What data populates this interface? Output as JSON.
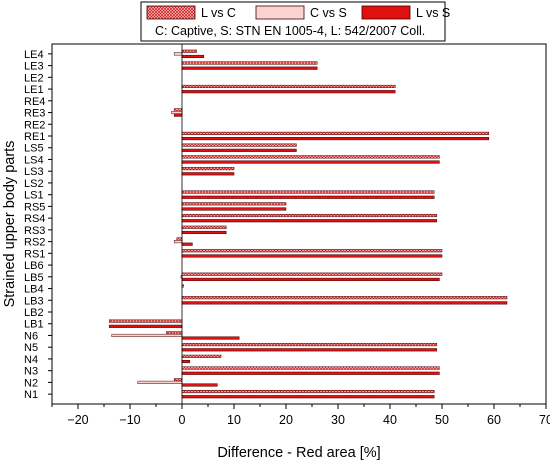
{
  "chart_data": {
    "type": "bar",
    "orientation": "horizontal",
    "xlabel": "Difference - Red area [%]",
    "ylabel": "Strained upper body parts",
    "xlim": [
      -25,
      70
    ],
    "xticks": [
      "−20",
      "−10",
      "0",
      "10",
      "20",
      "30",
      "40",
      "50",
      "60",
      "70"
    ],
    "categories": [
      "N1",
      "N2",
      "N3",
      "N4",
      "N5",
      "N6",
      "LB1",
      "LB2",
      "LB3",
      "LB4",
      "LB5",
      "LB6",
      "RS1",
      "RS2",
      "RS3",
      "RS4",
      "RS5",
      "LS1",
      "LS2",
      "LS3",
      "LS4",
      "LS5",
      "RE1",
      "RE2",
      "RE3",
      "RE4",
      "LE1",
      "LE2",
      "LE3",
      "LE4"
    ],
    "series": [
      {
        "name": "L vs C",
        "values": [
          48.5,
          -1.5,
          49.5,
          7.5,
          49.0,
          -3.0,
          -14.0,
          0,
          62.5,
          0.3,
          50.0,
          0,
          50.0,
          -1.0,
          8.5,
          49.0,
          20.0,
          48.5,
          0,
          10.0,
          49.5,
          22.0,
          59.0,
          0,
          -1.5,
          0,
          41.0,
          0,
          26.0,
          2.8
        ]
      },
      {
        "name": "C vs S",
        "values": [
          0,
          -8.5,
          0,
          0,
          0,
          -13.5,
          0,
          0,
          0,
          0,
          -0.2,
          0,
          0,
          -1.5,
          0,
          0,
          0,
          0,
          0,
          0,
          0,
          0,
          0,
          0,
          -2.0,
          0,
          0,
          0,
          0,
          -1.5
        ]
      },
      {
        "name": "L vs S",
        "values": [
          48.5,
          6.8,
          49.5,
          1.5,
          49.0,
          11.0,
          -14.0,
          0,
          62.5,
          0,
          49.5,
          0,
          50.0,
          2.0,
          8.5,
          49.0,
          20.0,
          48.5,
          0,
          10.0,
          49.5,
          22.0,
          59.0,
          0,
          -1.5,
          0,
          41.0,
          0,
          26.0,
          4.2
        ]
      }
    ],
    "legend_position": "top-center",
    "legend_note": "C: Captive, S: STN EN 1005-4, L: 542/2007 Coll.",
    "colors": {
      "L vs C": "#f4a6a6",
      "C vs S": "#fbd3d3",
      "L vs S": "#e01010",
      "edge": "#400000"
    }
  }
}
